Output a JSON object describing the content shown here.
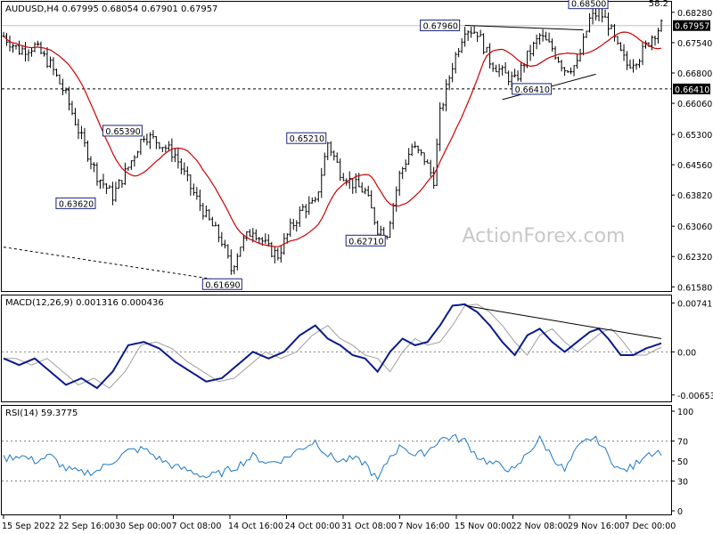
{
  "header": {
    "symbol_line": "AUDUSD,H4  0.67995 0.68054 0.67901 0.67957",
    "corner_value": "58.2"
  },
  "watermark": "ActionForex.com",
  "colors": {
    "background": "#ffffff",
    "bars": "#000000",
    "ma": "#cc0000",
    "macd_main": "#0a1a8c",
    "macd_signal": "#a0a0a0",
    "rsi": "#1e78c8",
    "levels": "#808080",
    "label_border": "#1a237e",
    "current_price_box": "#000000",
    "watermark": "#c8c8c8"
  },
  "chart_data": [
    {
      "type": "candlestick",
      "panel": "price",
      "title": "AUDUSD,H4",
      "ohlc_current": {
        "open": 0.67995,
        "high": 0.68054,
        "low": 0.67901,
        "close": 0.67957
      },
      "ylim": [
        0.615,
        0.6845
      ],
      "y_ticks": [
        "0.68280",
        "0.67540",
        "0.66800",
        "0.66060",
        "0.65300",
        "0.64560",
        "0.63820",
        "0.63060",
        "0.62320",
        "0.61580"
      ],
      "x_ticks": [
        "15 Sep 2022",
        "22 Sep 16:00",
        "30 Sep 00:00",
        "7 Oct 08:00",
        "14 Oct 16:00",
        "24 Oct 00:00",
        "31 Oct 08:00",
        "7 Nov 16:00",
        "15 Nov 00:00",
        "22 Nov 08:00",
        "29 Nov 16:00",
        "7 Dec 00:00"
      ],
      "close_path": [
        [
          0,
          0.677
        ],
        [
          5,
          0.6735
        ],
        [
          10,
          0.6745
        ],
        [
          15,
          0.67
        ],
        [
          20,
          0.6625
        ],
        [
          25,
          0.652
        ],
        [
          30,
          0.643
        ],
        [
          35,
          0.638
        ],
        [
          40,
          0.645
        ],
        [
          45,
          0.653
        ],
        [
          50,
          0.651
        ],
        [
          55,
          0.648
        ],
        [
          60,
          0.64
        ],
        [
          65,
          0.633
        ],
        [
          70,
          0.627
        ],
        [
          73,
          0.62
        ],
        [
          76,
          0.626
        ],
        [
          80,
          0.63
        ],
        [
          85,
          0.625
        ],
        [
          88,
          0.6235
        ],
        [
          92,
          0.63
        ],
        [
          96,
          0.635
        ],
        [
          100,
          0.636
        ],
        [
          104,
          0.651
        ],
        [
          108,
          0.644
        ],
        [
          112,
          0.641
        ],
        [
          116,
          0.639
        ],
        [
          120,
          0.63
        ],
        [
          123,
          0.629
        ],
        [
          127,
          0.643
        ],
        [
          131,
          0.65
        ],
        [
          135,
          0.647
        ],
        [
          138,
          0.642
        ],
        [
          140,
          0.658
        ],
        [
          144,
          0.67
        ],
        [
          148,
          0.679
        ],
        [
          152,
          0.678
        ],
        [
          156,
          0.671
        ],
        [
          160,
          0.668
        ],
        [
          164,
          0.666
        ],
        [
          168,
          0.672
        ],
        [
          172,
          0.677
        ],
        [
          176,
          0.674
        ],
        [
          180,
          0.669
        ],
        [
          184,
          0.67
        ],
        [
          188,
          0.681
        ],
        [
          191,
          0.683
        ],
        [
          194,
          0.68
        ],
        [
          197,
          0.674
        ],
        [
          200,
          0.67
        ],
        [
          204,
          0.672
        ],
        [
          208,
          0.677
        ],
        [
          211,
          0.6796
        ]
      ],
      "ma_period_note": "",
      "dashed_levels": [
        {
          "value": 0.6641,
          "label": "0.66410"
        }
      ],
      "current_price": {
        "value": 0.67957,
        "label": "0.67957"
      },
      "annotations": [
        {
          "text": "0.67960",
          "bar": 148,
          "value": 0.6796
        },
        {
          "text": "0.68500",
          "bar": 191,
          "value": 0.685
        },
        {
          "text": "0.66410",
          "bar": 170,
          "value": 0.6641
        },
        {
          "text": "0.65390",
          "bar": 45,
          "value": 0.6539
        },
        {
          "text": "0.65210",
          "bar": 104,
          "value": 0.6521
        },
        {
          "text": "0.63620",
          "bar": 30,
          "value": 0.6362
        },
        {
          "text": "0.62710",
          "bar": 123,
          "value": 0.6271
        },
        {
          "text": "0.61690",
          "bar": 73,
          "value": 0.6169
        }
      ],
      "trendlines": [
        {
          "from": [
            148,
            0.6796
          ],
          "to": [
            186,
            0.6785
          ]
        },
        {
          "from": [
            160,
            0.6615
          ],
          "to": [
            190,
            0.6677
          ]
        },
        {
          "from": [
            0,
            0.6255
          ],
          "to": [
            73,
            0.617
          ]
        }
      ]
    },
    {
      "type": "line",
      "panel": "macd",
      "title": "MACD(12,26,9) 0.001316 0.000436",
      "ylim": [
        -0.0071,
        0.008
      ],
      "y_ticks": [
        "0.007411",
        "0.00",
        "-0.006532"
      ],
      "zero_line": 0.0,
      "main_path": [
        [
          0,
          -0.001
        ],
        [
          5,
          -0.002
        ],
        [
          10,
          -0.001
        ],
        [
          15,
          -0.003
        ],
        [
          20,
          -0.005
        ],
        [
          25,
          -0.004
        ],
        [
          30,
          -0.0055
        ],
        [
          35,
          -0.003
        ],
        [
          40,
          0.001
        ],
        [
          45,
          0.0015
        ],
        [
          50,
          0.0005
        ],
        [
          55,
          -0.0015
        ],
        [
          60,
          -0.003
        ],
        [
          65,
          -0.0045
        ],
        [
          70,
          -0.004
        ],
        [
          75,
          -0.002
        ],
        [
          80,
          0.0
        ],
        [
          85,
          -0.001
        ],
        [
          90,
          0.0
        ],
        [
          95,
          0.0025
        ],
        [
          100,
          0.004
        ],
        [
          104,
          0.002
        ],
        [
          108,
          0.001
        ],
        [
          112,
          -0.0005
        ],
        [
          116,
          -0.001
        ],
        [
          120,
          -0.003
        ],
        [
          124,
          0.0
        ],
        [
          128,
          0.002
        ],
        [
          132,
          0.001
        ],
        [
          136,
          0.0015
        ],
        [
          140,
          0.004
        ],
        [
          144,
          0.007
        ],
        [
          148,
          0.0072
        ],
        [
          152,
          0.006
        ],
        [
          156,
          0.004
        ],
        [
          160,
          0.0015
        ],
        [
          164,
          -0.0005
        ],
        [
          168,
          0.0025
        ],
        [
          172,
          0.0035
        ],
        [
          176,
          0.0015
        ],
        [
          180,
          0.0
        ],
        [
          184,
          0.0015
        ],
        [
          188,
          0.003
        ],
        [
          191,
          0.0035
        ],
        [
          194,
          0.002
        ],
        [
          198,
          -0.0005
        ],
        [
          202,
          -0.0005
        ],
        [
          206,
          0.0005
        ],
        [
          211,
          0.0013
        ]
      ],
      "signal_lag_bars": 4,
      "trendline": {
        "from": [
          148,
          0.007
        ],
        "to": [
          211,
          0.002
        ]
      }
    },
    {
      "type": "line",
      "panel": "rsi",
      "title": "RSI(14) 59.3775",
      "ylim": [
        0,
        100
      ],
      "y_ticks": [
        "100",
        "70",
        "50",
        "30",
        "0"
      ],
      "levels": [
        70,
        30
      ],
      "path": [
        [
          0,
          52
        ],
        [
          5,
          56
        ],
        [
          10,
          50
        ],
        [
          15,
          55
        ],
        [
          20,
          42
        ],
        [
          25,
          38
        ],
        [
          30,
          40
        ],
        [
          35,
          50
        ],
        [
          40,
          60
        ],
        [
          45,
          62
        ],
        [
          50,
          52
        ],
        [
          55,
          44
        ],
        [
          60,
          40
        ],
        [
          65,
          34
        ],
        [
          70,
          38
        ],
        [
          75,
          45
        ],
        [
          80,
          55
        ],
        [
          85,
          48
        ],
        [
          90,
          52
        ],
        [
          95,
          62
        ],
        [
          100,
          70
        ],
        [
          104,
          56
        ],
        [
          108,
          50
        ],
        [
          112,
          52
        ],
        [
          116,
          48
        ],
        [
          120,
          30
        ],
        [
          124,
          55
        ],
        [
          128,
          66
        ],
        [
          132,
          55
        ],
        [
          136,
          60
        ],
        [
          140,
          72
        ],
        [
          144,
          74
        ],
        [
          148,
          70
        ],
        [
          152,
          55
        ],
        [
          156,
          48
        ],
        [
          160,
          45
        ],
        [
          164,
          40
        ],
        [
          168,
          58
        ],
        [
          172,
          72
        ],
        [
          176,
          55
        ],
        [
          180,
          40
        ],
        [
          184,
          62
        ],
        [
          188,
          73
        ],
        [
          191,
          70
        ],
        [
          194,
          55
        ],
        [
          198,
          40
        ],
        [
          202,
          44
        ],
        [
          206,
          58
        ],
        [
          211,
          59.4
        ]
      ]
    }
  ]
}
